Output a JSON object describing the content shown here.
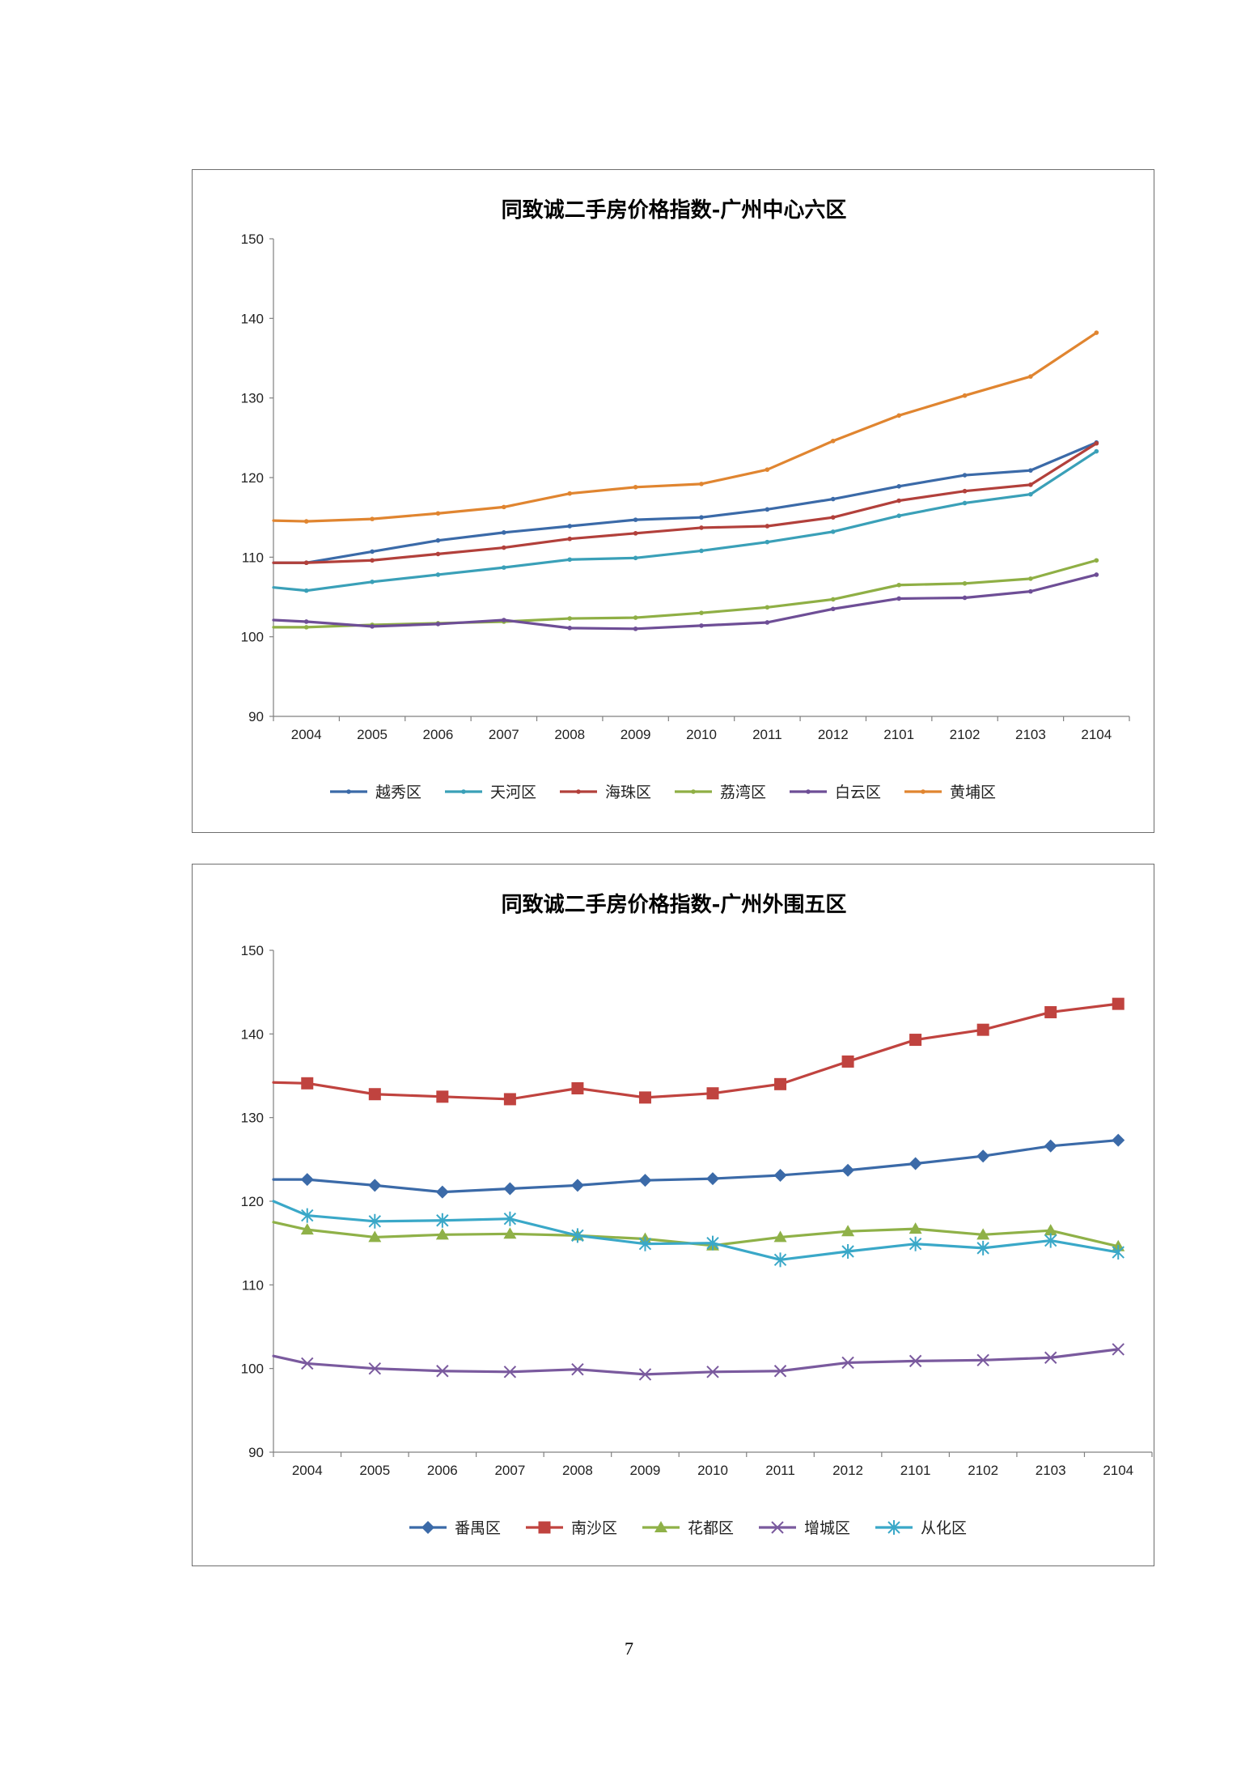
{
  "page_number": "7",
  "chart_data": [
    {
      "type": "line",
      "title": "同致诚二手房价格指数-广州中心六区",
      "xlabel": "",
      "ylabel": "",
      "categories": [
        "2004",
        "2005",
        "2006",
        "2007",
        "2008",
        "2009",
        "2010",
        "2011",
        "2012",
        "2101",
        "2102",
        "2103",
        "2104"
      ],
      "y_ticks": [
        "150",
        "140",
        "130",
        "120",
        "110",
        "100",
        "90"
      ],
      "ylim": [
        90,
        150
      ],
      "grid": false,
      "legend_position": "bottom",
      "marker": "small-dot",
      "series": [
        {
          "name": "越秀区",
          "color": "#3b6aa8",
          "start": 109.3,
          "values": [
            109.3,
            110.7,
            112.1,
            113.1,
            113.9,
            114.7,
            115.0,
            116.0,
            117.3,
            118.9,
            120.3,
            120.9,
            124.4
          ]
        },
        {
          "name": "天河区",
          "color": "#3aa0b8",
          "start": 106.2,
          "values": [
            105.8,
            106.9,
            107.8,
            108.7,
            109.7,
            109.9,
            110.8,
            111.9,
            113.2,
            115.2,
            116.8,
            117.9,
            123.3
          ]
        },
        {
          "name": "海珠区",
          "color": "#b2403b",
          "start": 109.3,
          "values": [
            109.3,
            109.6,
            110.4,
            111.2,
            112.3,
            113.0,
            113.7,
            113.9,
            115.0,
            117.1,
            118.3,
            119.1,
            124.3
          ]
        },
        {
          "name": "荔湾区",
          "color": "#8faf45",
          "start": 101.2,
          "values": [
            101.2,
            101.5,
            101.7,
            101.9,
            102.3,
            102.4,
            103.0,
            103.7,
            104.7,
            106.5,
            106.7,
            107.3,
            109.6
          ]
        },
        {
          "name": "白云区",
          "color": "#6e4e96",
          "start": 102.1,
          "values": [
            101.9,
            101.3,
            101.6,
            102.1,
            101.1,
            101.0,
            101.4,
            101.8,
            103.5,
            104.8,
            104.9,
            105.7,
            107.8
          ]
        },
        {
          "name": "黄埔区",
          "color": "#e08530",
          "start": 114.6,
          "values": [
            114.5,
            114.8,
            115.5,
            116.3,
            118.0,
            118.8,
            119.2,
            121.0,
            124.6,
            127.8,
            130.3,
            132.7,
            138.2
          ]
        }
      ]
    },
    {
      "type": "line",
      "title": "同致诚二手房价格指数-广州外围五区",
      "xlabel": "",
      "ylabel": "",
      "categories": [
        "2004",
        "2005",
        "2006",
        "2007",
        "2008",
        "2009",
        "2010",
        "2011",
        "2012",
        "2101",
        "2102",
        "2103",
        "2104"
      ],
      "y_ticks": [
        "150",
        "140",
        "130",
        "120",
        "110",
        "100",
        "90"
      ],
      "ylim": [
        90,
        150
      ],
      "grid": false,
      "legend_position": "bottom",
      "series": [
        {
          "name": "番禺区",
          "color": "#3b6aa8",
          "marker": "diamond",
          "start": 122.6,
          "values": [
            122.6,
            121.9,
            121.1,
            121.5,
            121.9,
            122.5,
            122.7,
            123.1,
            123.7,
            124.5,
            125.4,
            126.6,
            127.3
          ]
        },
        {
          "name": "南沙区",
          "color": "#c0433f",
          "marker": "square",
          "start": 134.2,
          "values": [
            134.1,
            132.8,
            132.5,
            132.2,
            133.5,
            132.4,
            132.9,
            134.0,
            136.7,
            139.3,
            140.5,
            142.6,
            143.6
          ]
        },
        {
          "name": "花都区",
          "color": "#8fb148",
          "marker": "triangle",
          "start": 117.5,
          "values": [
            116.6,
            115.7,
            116.0,
            116.1,
            115.9,
            115.5,
            114.7,
            115.7,
            116.4,
            116.7,
            116.0,
            116.5,
            114.6
          ]
        },
        {
          "name": "增城区",
          "color": "#7a5a9e",
          "marker": "cross",
          "start": 101.5,
          "values": [
            100.6,
            100.0,
            99.7,
            99.6,
            99.9,
            99.3,
            99.6,
            99.7,
            100.7,
            100.9,
            101.0,
            101.3,
            102.3
          ]
        },
        {
          "name": "从化区",
          "color": "#3aa8c8",
          "marker": "asterisk",
          "start": 120.0,
          "values": [
            118.3,
            117.6,
            117.7,
            117.9,
            115.9,
            114.9,
            115.0,
            113.0,
            114.0,
            114.9,
            114.4,
            115.3,
            113.9
          ]
        }
      ]
    }
  ]
}
